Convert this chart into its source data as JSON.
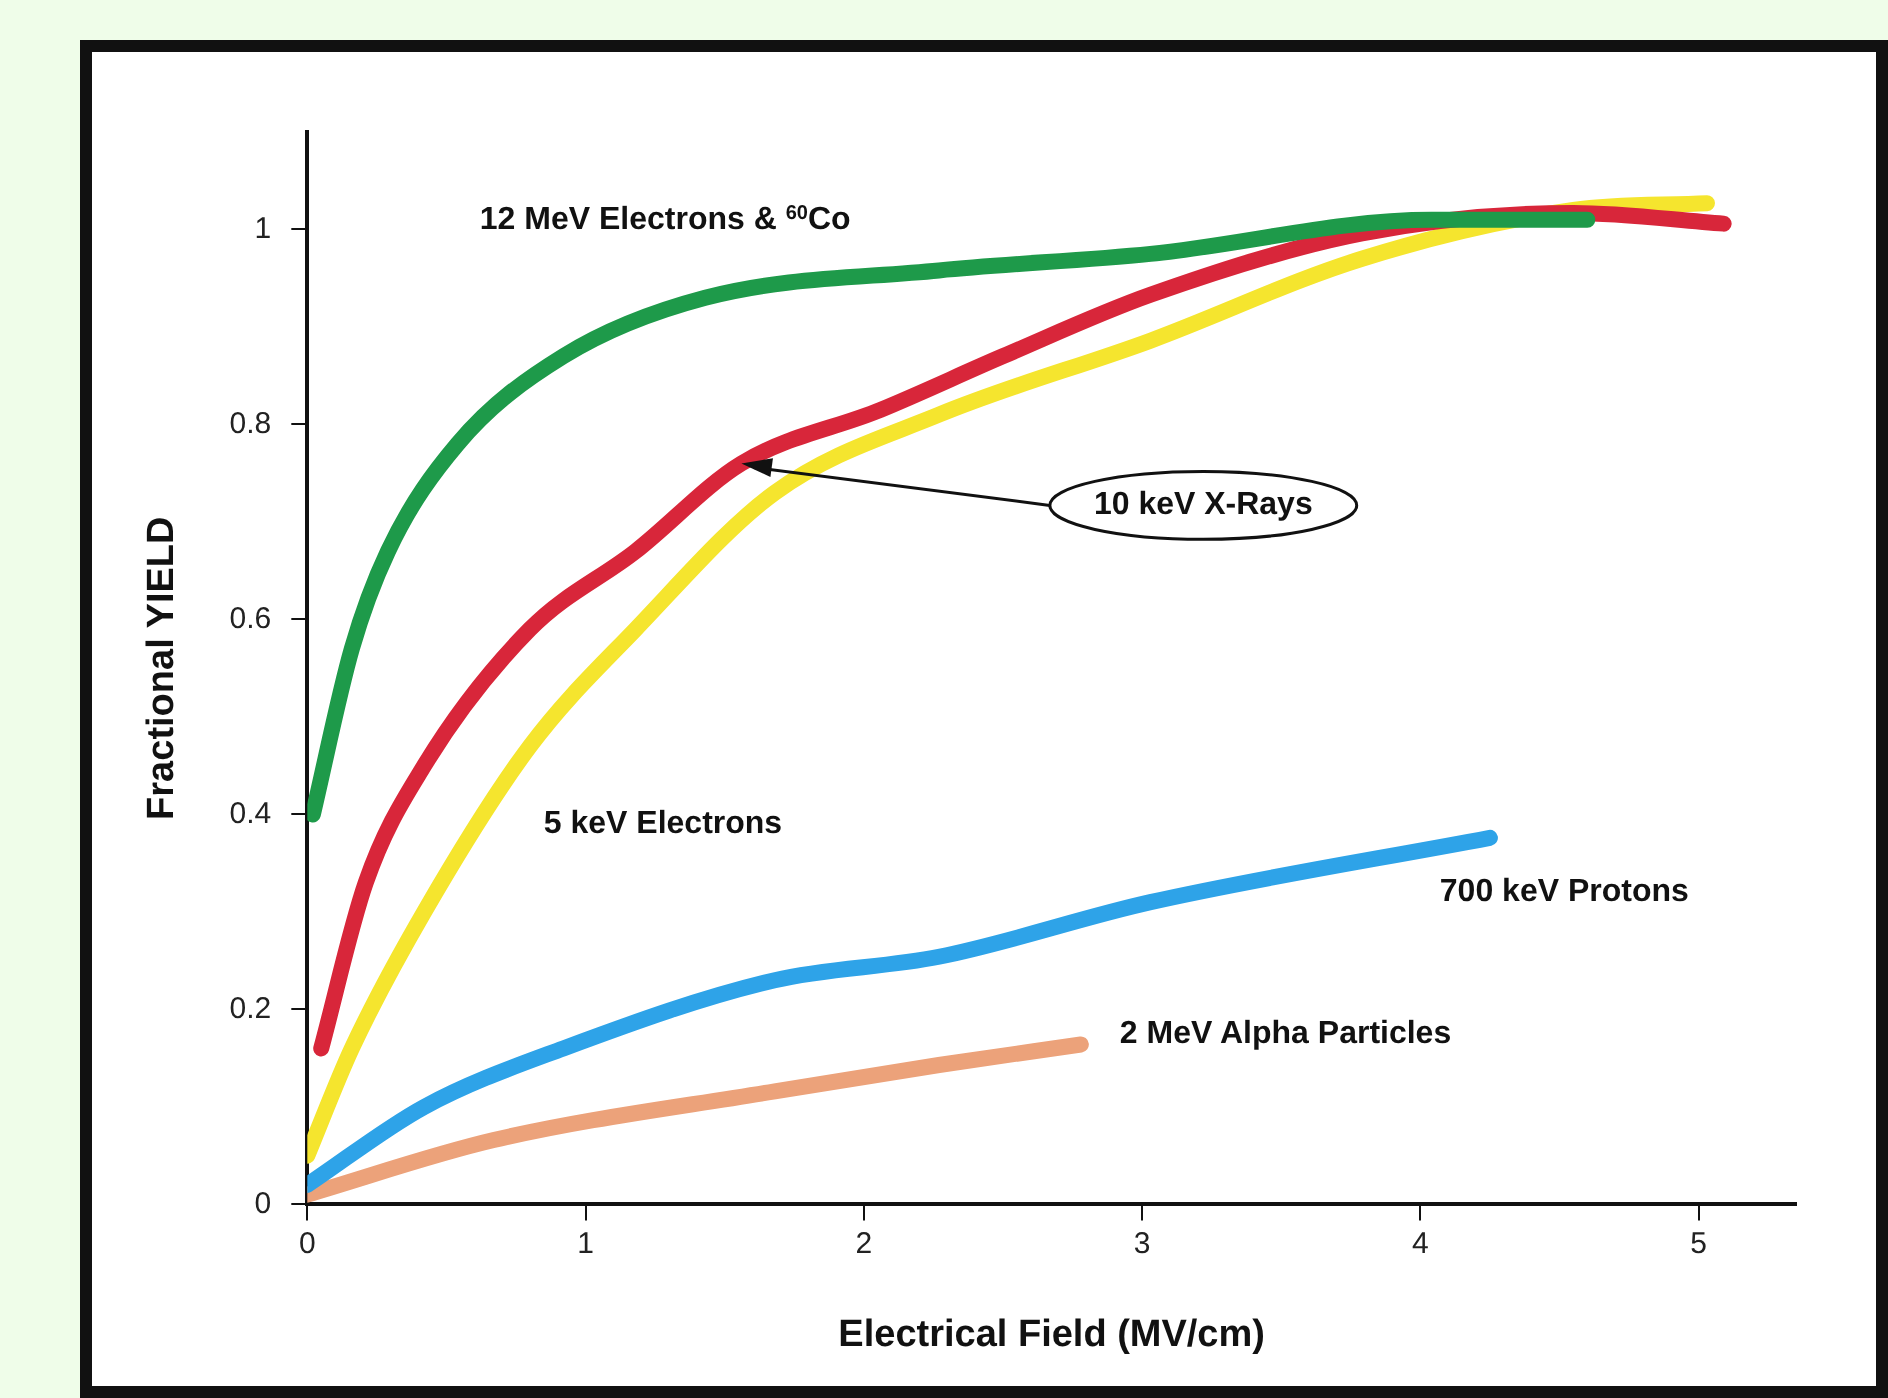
{
  "chart_data": {
    "type": "line",
    "xlabel": "Electrical Field (MV/cm)",
    "ylabel": "Fractional YIELD",
    "xlim": [
      0,
      5.35
    ],
    "ylim": [
      0,
      1.1
    ],
    "xticks": [
      0,
      1,
      2,
      3,
      4,
      5
    ],
    "yticks": [
      0,
      0.2,
      0.4,
      0.6,
      0.8,
      1
    ],
    "grid": false,
    "legend": false,
    "marker": "none",
    "line_style": "solid",
    "series": [
      {
        "name": "12 MeV Electrons & $^{60}$Co",
        "color": "#1e9a4a",
        "x": [
          0.02,
          0.16,
          0.29,
          0.54,
          0.92,
          1.43,
          2.27,
          3.03,
          4.04,
          4.6
        ],
        "values": [
          0.4,
          0.57,
          0.67,
          0.78,
          0.87,
          0.93,
          0.958,
          0.975,
          1.01,
          1.01
        ]
      },
      {
        "name": "10 keV X-Rays",
        "color": "#d8263a",
        "x": [
          0.05,
          0.21,
          0.42,
          0.8,
          1.18,
          1.56,
          2.06,
          2.5,
          3.03,
          3.79,
          4.55,
          5.09
        ],
        "values": [
          0.16,
          0.33,
          0.45,
          0.59,
          0.67,
          0.76,
          0.815,
          0.87,
          0.933,
          0.996,
          1.017,
          1.006
        ]
      },
      {
        "name": "5 keV Electrons",
        "color": "#f5e52e",
        "x": [
          0.0,
          0.16,
          0.42,
          0.8,
          1.18,
          1.68,
          2.27,
          3.03,
          3.79,
          4.55,
          5.03
        ],
        "values": [
          0.05,
          0.16,
          0.3,
          0.47,
          0.59,
          0.73,
          0.81,
          0.886,
          0.97,
          1.02,
          1.027
        ]
      },
      {
        "name": "700 keV Protons",
        "color": "#2ea3e8",
        "x": [
          0.0,
          0.42,
          0.92,
          1.68,
          2.27,
          3.03,
          4.25
        ],
        "values": [
          0.02,
          0.1,
          0.16,
          0.23,
          0.254,
          0.31,
          0.376
        ]
      },
      {
        "name": "2 MeV Alpha Particles",
        "color": "#eca27a",
        "x": [
          0.0,
          0.67,
          1.68,
          2.27,
          2.78
        ],
        "values": [
          0.01,
          0.066,
          0.116,
          0.143,
          0.164
        ]
      }
    ]
  }
}
